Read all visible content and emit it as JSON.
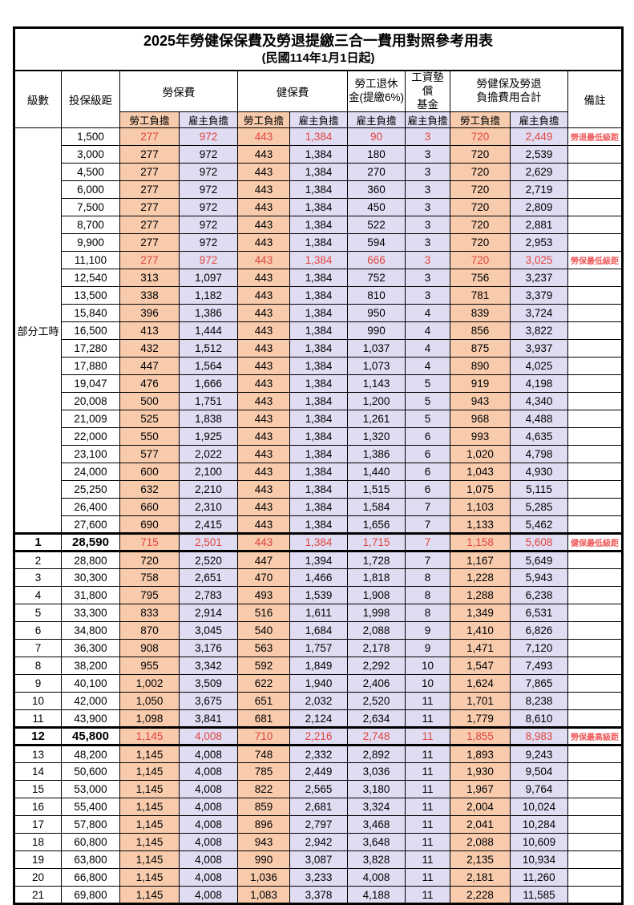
{
  "title": "2025年勞健保保費及勞退提繳三合一費用對照參考用表",
  "subtitle": "(民國114年1月1日起)",
  "part_time_label": "部分工時",
  "colors": {
    "employee_bg": "#F8CBAD",
    "employer_bg": "#E0DCF2",
    "highlight_text": "#E0453E",
    "remark_text": "#F05858",
    "border": "#000000"
  },
  "columns": {
    "level": "級數",
    "bracket": "投保級距",
    "labor_ins": "勞保費",
    "health_ins": "健保費",
    "pension_line1": "勞工退休",
    "pension_line2": "金(提繳6%)",
    "wage_fund_line1": "工資墊償",
    "wage_fund_line2": "基金",
    "total_line1": "勞健保及勞退",
    "total_line2": "負擔費用合計",
    "remark": "備註",
    "employee": "勞工負擔",
    "employer": "雇主負擔"
  },
  "rows": [
    {
      "level": "",
      "bracket": "1,500",
      "v": [
        "277",
        "972",
        "443",
        "1,384",
        "90",
        "3",
        "720",
        "2,449"
      ],
      "remark": "勞退最低級距",
      "red": true,
      "bold": false,
      "thick": false
    },
    {
      "level": "",
      "bracket": "3,000",
      "v": [
        "277",
        "972",
        "443",
        "1,384",
        "180",
        "3",
        "720",
        "2,539"
      ],
      "remark": "",
      "red": false,
      "bold": false,
      "thick": false
    },
    {
      "level": "",
      "bracket": "4,500",
      "v": [
        "277",
        "972",
        "443",
        "1,384",
        "270",
        "3",
        "720",
        "2,629"
      ],
      "remark": "",
      "red": false,
      "bold": false,
      "thick": false
    },
    {
      "level": "",
      "bracket": "6,000",
      "v": [
        "277",
        "972",
        "443",
        "1,384",
        "360",
        "3",
        "720",
        "2,719"
      ],
      "remark": "",
      "red": false,
      "bold": false,
      "thick": false
    },
    {
      "level": "",
      "bracket": "7,500",
      "v": [
        "277",
        "972",
        "443",
        "1,384",
        "450",
        "3",
        "720",
        "2,809"
      ],
      "remark": "",
      "red": false,
      "bold": false,
      "thick": false
    },
    {
      "level": "",
      "bracket": "8,700",
      "v": [
        "277",
        "972",
        "443",
        "1,384",
        "522",
        "3",
        "720",
        "2,881"
      ],
      "remark": "",
      "red": false,
      "bold": false,
      "thick": false
    },
    {
      "level": "",
      "bracket": "9,900",
      "v": [
        "277",
        "972",
        "443",
        "1,384",
        "594",
        "3",
        "720",
        "2,953"
      ],
      "remark": "",
      "red": false,
      "bold": false,
      "thick": false
    },
    {
      "level": "",
      "bracket": "11,100",
      "v": [
        "277",
        "972",
        "443",
        "1,384",
        "666",
        "3",
        "720",
        "3,025"
      ],
      "remark": "勞保最低級距",
      "red": true,
      "bold": false,
      "thick": false
    },
    {
      "level": "",
      "bracket": "12,540",
      "v": [
        "313",
        "1,097",
        "443",
        "1,384",
        "752",
        "3",
        "756",
        "3,237"
      ],
      "remark": "",
      "red": false,
      "bold": false,
      "thick": false
    },
    {
      "level": "",
      "bracket": "13,500",
      "v": [
        "338",
        "1,182",
        "443",
        "1,384",
        "810",
        "3",
        "781",
        "3,379"
      ],
      "remark": "",
      "red": false,
      "bold": false,
      "thick": false
    },
    {
      "level": "",
      "bracket": "15,840",
      "v": [
        "396",
        "1,386",
        "443",
        "1,384",
        "950",
        "4",
        "839",
        "3,724"
      ],
      "remark": "",
      "red": false,
      "bold": false,
      "thick": false
    },
    {
      "level": "",
      "bracket": "16,500",
      "v": [
        "413",
        "1,444",
        "443",
        "1,384",
        "990",
        "4",
        "856",
        "3,822"
      ],
      "remark": "",
      "red": false,
      "bold": false,
      "thick": false
    },
    {
      "level": "",
      "bracket": "17,280",
      "v": [
        "432",
        "1,512",
        "443",
        "1,384",
        "1,037",
        "4",
        "875",
        "3,937"
      ],
      "remark": "",
      "red": false,
      "bold": false,
      "thick": false
    },
    {
      "level": "",
      "bracket": "17,880",
      "v": [
        "447",
        "1,564",
        "443",
        "1,384",
        "1,073",
        "4",
        "890",
        "4,025"
      ],
      "remark": "",
      "red": false,
      "bold": false,
      "thick": false
    },
    {
      "level": "",
      "bracket": "19,047",
      "v": [
        "476",
        "1,666",
        "443",
        "1,384",
        "1,143",
        "5",
        "919",
        "4,198"
      ],
      "remark": "",
      "red": false,
      "bold": false,
      "thick": false
    },
    {
      "level": "",
      "bracket": "20,008",
      "v": [
        "500",
        "1,751",
        "443",
        "1,384",
        "1,200",
        "5",
        "943",
        "4,340"
      ],
      "remark": "",
      "red": false,
      "bold": false,
      "thick": false
    },
    {
      "level": "",
      "bracket": "21,009",
      "v": [
        "525",
        "1,838",
        "443",
        "1,384",
        "1,261",
        "5",
        "968",
        "4,488"
      ],
      "remark": "",
      "red": false,
      "bold": false,
      "thick": false
    },
    {
      "level": "",
      "bracket": "22,000",
      "v": [
        "550",
        "1,925",
        "443",
        "1,384",
        "1,320",
        "6",
        "993",
        "4,635"
      ],
      "remark": "",
      "red": false,
      "bold": false,
      "thick": false
    },
    {
      "level": "",
      "bracket": "23,100",
      "v": [
        "577",
        "2,022",
        "443",
        "1,384",
        "1,386",
        "6",
        "1,020",
        "4,798"
      ],
      "remark": "",
      "red": false,
      "bold": false,
      "thick": false
    },
    {
      "level": "",
      "bracket": "24,000",
      "v": [
        "600",
        "2,100",
        "443",
        "1,384",
        "1,440",
        "6",
        "1,043",
        "4,930"
      ],
      "remark": "",
      "red": false,
      "bold": false,
      "thick": false
    },
    {
      "level": "",
      "bracket": "25,250",
      "v": [
        "632",
        "2,210",
        "443",
        "1,384",
        "1,515",
        "6",
        "1,075",
        "5,115"
      ],
      "remark": "",
      "red": false,
      "bold": false,
      "thick": false
    },
    {
      "level": "",
      "bracket": "26,400",
      "v": [
        "660",
        "2,310",
        "443",
        "1,384",
        "1,584",
        "7",
        "1,103",
        "5,285"
      ],
      "remark": "",
      "red": false,
      "bold": false,
      "thick": false
    },
    {
      "level": "",
      "bracket": "27,600",
      "v": [
        "690",
        "2,415",
        "443",
        "1,384",
        "1,656",
        "7",
        "1,133",
        "5,462"
      ],
      "remark": "",
      "red": false,
      "bold": false,
      "thick": false
    },
    {
      "level": "1",
      "bracket": "28,590",
      "v": [
        "715",
        "2,501",
        "443",
        "1,384",
        "1,715",
        "7",
        "1,158",
        "5,608"
      ],
      "remark": "健保最低級距",
      "red": true,
      "bold": true,
      "thick": true
    },
    {
      "level": "2",
      "bracket": "28,800",
      "v": [
        "720",
        "2,520",
        "447",
        "1,394",
        "1,728",
        "7",
        "1,167",
        "5,649"
      ],
      "remark": "",
      "red": false,
      "bold": false,
      "thick": false
    },
    {
      "level": "3",
      "bracket": "30,300",
      "v": [
        "758",
        "2,651",
        "470",
        "1,466",
        "1,818",
        "8",
        "1,228",
        "5,943"
      ],
      "remark": "",
      "red": false,
      "bold": false,
      "thick": false
    },
    {
      "level": "4",
      "bracket": "31,800",
      "v": [
        "795",
        "2,783",
        "493",
        "1,539",
        "1,908",
        "8",
        "1,288",
        "6,238"
      ],
      "remark": "",
      "red": false,
      "bold": false,
      "thick": false
    },
    {
      "level": "5",
      "bracket": "33,300",
      "v": [
        "833",
        "2,914",
        "516",
        "1,611",
        "1,998",
        "8",
        "1,349",
        "6,531"
      ],
      "remark": "",
      "red": false,
      "bold": false,
      "thick": false
    },
    {
      "level": "6",
      "bracket": "34,800",
      "v": [
        "870",
        "3,045",
        "540",
        "1,684",
        "2,088",
        "9",
        "1,410",
        "6,826"
      ],
      "remark": "",
      "red": false,
      "bold": false,
      "thick": false
    },
    {
      "level": "7",
      "bracket": "36,300",
      "v": [
        "908",
        "3,176",
        "563",
        "1,757",
        "2,178",
        "9",
        "1,471",
        "7,120"
      ],
      "remark": "",
      "red": false,
      "bold": false,
      "thick": false
    },
    {
      "level": "8",
      "bracket": "38,200",
      "v": [
        "955",
        "3,342",
        "592",
        "1,849",
        "2,292",
        "10",
        "1,547",
        "7,493"
      ],
      "remark": "",
      "red": false,
      "bold": false,
      "thick": false
    },
    {
      "level": "9",
      "bracket": "40,100",
      "v": [
        "1,002",
        "3,509",
        "622",
        "1,940",
        "2,406",
        "10",
        "1,624",
        "7,865"
      ],
      "remark": "",
      "red": false,
      "bold": false,
      "thick": false
    },
    {
      "level": "10",
      "bracket": "42,000",
      "v": [
        "1,050",
        "3,675",
        "651",
        "2,032",
        "2,520",
        "11",
        "1,701",
        "8,238"
      ],
      "remark": "",
      "red": false,
      "bold": false,
      "thick": false
    },
    {
      "level": "11",
      "bracket": "43,900",
      "v": [
        "1,098",
        "3,841",
        "681",
        "2,124",
        "2,634",
        "11",
        "1,779",
        "8,610"
      ],
      "remark": "",
      "red": false,
      "bold": false,
      "thick": false
    },
    {
      "level": "12",
      "bracket": "45,800",
      "v": [
        "1,145",
        "4,008",
        "710",
        "2,216",
        "2,748",
        "11",
        "1,855",
        "8,983"
      ],
      "remark": "勞保最高級距",
      "red": true,
      "bold": true,
      "thick": true
    },
    {
      "level": "13",
      "bracket": "48,200",
      "v": [
        "1,145",
        "4,008",
        "748",
        "2,332",
        "2,892",
        "11",
        "1,893",
        "9,243"
      ],
      "remark": "",
      "red": false,
      "bold": false,
      "thick": false
    },
    {
      "level": "14",
      "bracket": "50,600",
      "v": [
        "1,145",
        "4,008",
        "785",
        "2,449",
        "3,036",
        "11",
        "1,930",
        "9,504"
      ],
      "remark": "",
      "red": false,
      "bold": false,
      "thick": false
    },
    {
      "level": "15",
      "bracket": "53,000",
      "v": [
        "1,145",
        "4,008",
        "822",
        "2,565",
        "3,180",
        "11",
        "1,967",
        "9,764"
      ],
      "remark": "",
      "red": false,
      "bold": false,
      "thick": false
    },
    {
      "level": "16",
      "bracket": "55,400",
      "v": [
        "1,145",
        "4,008",
        "859",
        "2,681",
        "3,324",
        "11",
        "2,004",
        "10,024"
      ],
      "remark": "",
      "red": false,
      "bold": false,
      "thick": false
    },
    {
      "level": "17",
      "bracket": "57,800",
      "v": [
        "1,145",
        "4,008",
        "896",
        "2,797",
        "3,468",
        "11",
        "2,041",
        "10,284"
      ],
      "remark": "",
      "red": false,
      "bold": false,
      "thick": false
    },
    {
      "level": "18",
      "bracket": "60,800",
      "v": [
        "1,145",
        "4,008",
        "943",
        "2,942",
        "3,648",
        "11",
        "2,088",
        "10,609"
      ],
      "remark": "",
      "red": false,
      "bold": false,
      "thick": false
    },
    {
      "level": "19",
      "bracket": "63,800",
      "v": [
        "1,145",
        "4,008",
        "990",
        "3,087",
        "3,828",
        "11",
        "2,135",
        "10,934"
      ],
      "remark": "",
      "red": false,
      "bold": false,
      "thick": false
    },
    {
      "level": "20",
      "bracket": "66,800",
      "v": [
        "1,145",
        "4,008",
        "1,036",
        "3,233",
        "4,008",
        "11",
        "2,181",
        "11,260"
      ],
      "remark": "",
      "red": false,
      "bold": false,
      "thick": false
    },
    {
      "level": "21",
      "bracket": "69,800",
      "v": [
        "1,145",
        "4,008",
        "1,083",
        "3,378",
        "4,188",
        "11",
        "2,228",
        "11,585"
      ],
      "remark": "",
      "red": false,
      "bold": false,
      "thick": false
    }
  ]
}
